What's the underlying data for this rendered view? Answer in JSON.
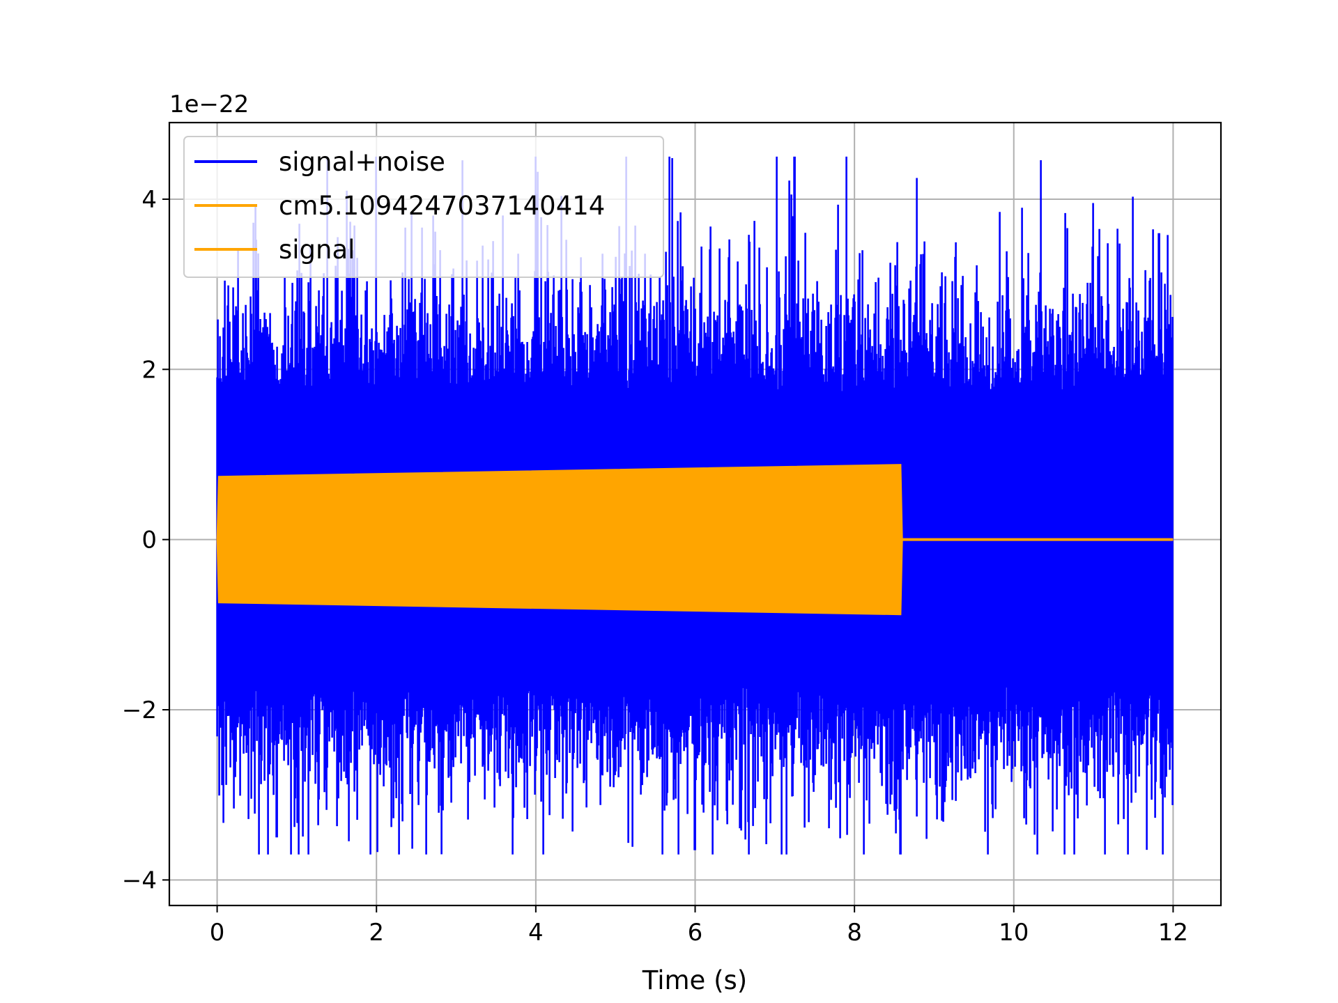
{
  "chart_data": {
    "type": "line",
    "title": "",
    "xlabel": "Time (s)",
    "ylabel": "",
    "y_offset_label": "1e−22",
    "xlim": [
      -0.6,
      12.6
    ],
    "ylim": [
      -4.3,
      4.9
    ],
    "x_ticks": [
      0,
      2,
      4,
      6,
      8,
      10,
      12
    ],
    "x_tick_labels": [
      "0",
      "2",
      "4",
      "6",
      "8",
      "10",
      "12"
    ],
    "y_ticks": [
      -4,
      -2,
      0,
      2,
      4
    ],
    "y_tick_labels": [
      "−4",
      "−2",
      "0",
      "2",
      "4"
    ],
    "grid": true,
    "legend_position": "top-left",
    "series": [
      {
        "name": "signal+noise",
        "color": "#0000ff",
        "description_values": {
          "x_range": [
            0,
            12
          ],
          "typical_amplitude": 1.8,
          "max_peak": 4.5,
          "min_peak": -3.7
        }
      },
      {
        "name": "cm5.1094247037140414",
        "color": "#ffa500"
      },
      {
        "name": "signal",
        "color": "#ffa500",
        "description_values": {
          "x_range": [
            0,
            8.58
          ],
          "envelope_start": 0.74,
          "envelope_end": 0.88,
          "value_after_end": 0
        }
      }
    ]
  }
}
